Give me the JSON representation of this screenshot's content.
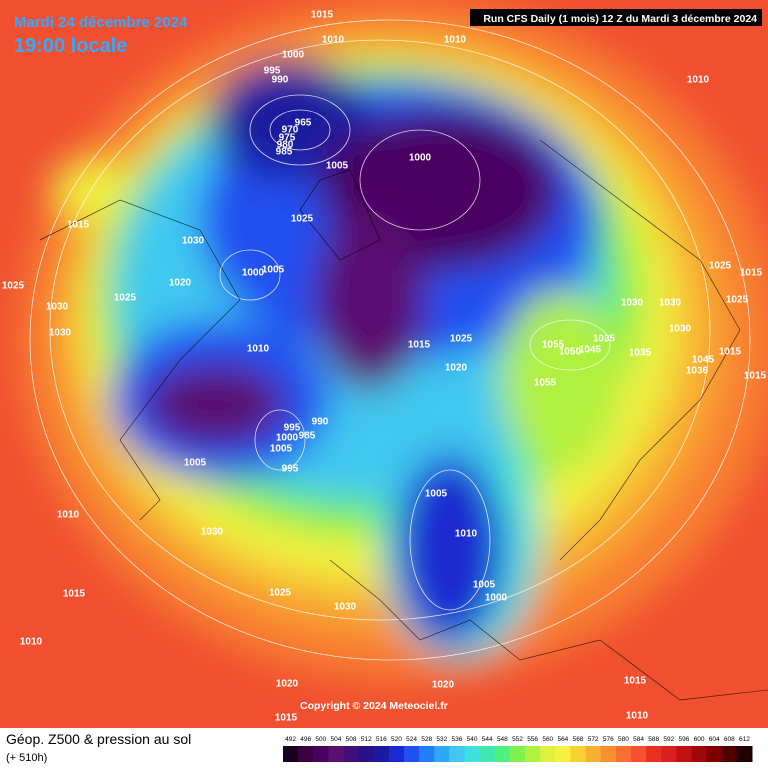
{
  "header": {
    "date": "Mardi 24 décembre 2024",
    "time": "19:00 locale",
    "run": "Run CFS Daily (1 mois) 12 Z du Mardi 3 décembre 2024"
  },
  "copyright": "Copyright © 2024 Meteociel.fr",
  "legend": {
    "title": "Géop. Z500 & pression au sol",
    "lead": "(+ 510h)",
    "labels": [
      492,
      496,
      500,
      504,
      508,
      512,
      516,
      520,
      524,
      528,
      532,
      536,
      540,
      544,
      548,
      552,
      556,
      560,
      564,
      568,
      572,
      576,
      580,
      584,
      588,
      592,
      596,
      600,
      604,
      608,
      612
    ],
    "colors": [
      "#1a0020",
      "#3a0040",
      "#4a0060",
      "#5a1070",
      "#40107a",
      "#2a1088",
      "#1a1aa0",
      "#1a2ad0",
      "#2050f0",
      "#2080f8",
      "#30a8f8",
      "#40c8f0",
      "#40e0e0",
      "#40e8b0",
      "#50f080",
      "#80f050",
      "#b0f040",
      "#e0f040",
      "#f8f040",
      "#f8d030",
      "#f8b030",
      "#f89030",
      "#f87030",
      "#f85030",
      "#e83020",
      "#d82020",
      "#c01010",
      "#a00808",
      "#800000",
      "#500000",
      "#200000"
    ]
  },
  "map": {
    "isobar_labels": [
      1015,
      1010,
      1010,
      1010,
      1000,
      995,
      990,
      965,
      970,
      975,
      980,
      985,
      1005,
      1000,
      1015,
      1025,
      1030,
      1020,
      1025,
      1025,
      1030,
      1030,
      1000,
      1005,
      1010,
      1015,
      1025,
      1030,
      1030,
      1025,
      1015,
      1025,
      1030,
      1055,
      1050,
      1045,
      1035,
      1035,
      1045,
      1036,
      1015,
      1015,
      1020,
      1055,
      990,
      995,
      1000,
      985,
      1005,
      995,
      1005,
      1005,
      1010,
      1010,
      1030,
      1005,
      1000,
      1015,
      1025,
      1030,
      1010,
      1020,
      1020,
      1015,
      1010,
      1015
    ]
  }
}
